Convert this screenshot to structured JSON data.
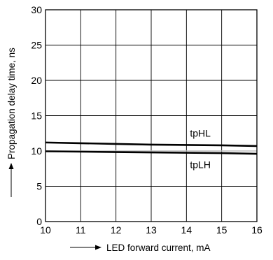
{
  "chart_data": {
    "type": "line",
    "title": "",
    "xlabel": "LED forward current, mA",
    "ylabel": "Propagation delay time, ns",
    "xlim": [
      10,
      16
    ],
    "ylim": [
      0,
      30
    ],
    "x_ticks": [
      10,
      11,
      12,
      13,
      14,
      15,
      16
    ],
    "y_ticks": [
      0,
      5,
      10,
      15,
      20,
      25,
      30
    ],
    "grid": true,
    "legend": "none",
    "series": [
      {
        "name": "tpHL",
        "x": [
          10,
          11,
          12,
          13,
          14,
          15,
          16
        ],
        "y": [
          11.2,
          11.1,
          11.0,
          10.9,
          10.85,
          10.8,
          10.7
        ],
        "color": "#000000"
      },
      {
        "name": "tpLH",
        "x": [
          10,
          11,
          12,
          13,
          14,
          15,
          16
        ],
        "y": [
          9.95,
          9.9,
          9.85,
          9.8,
          9.75,
          9.7,
          9.6
        ],
        "color": "#000000"
      }
    ],
    "reference_lines": [
      {
        "y": 10.0,
        "color": "#bdbdbd"
      }
    ]
  }
}
